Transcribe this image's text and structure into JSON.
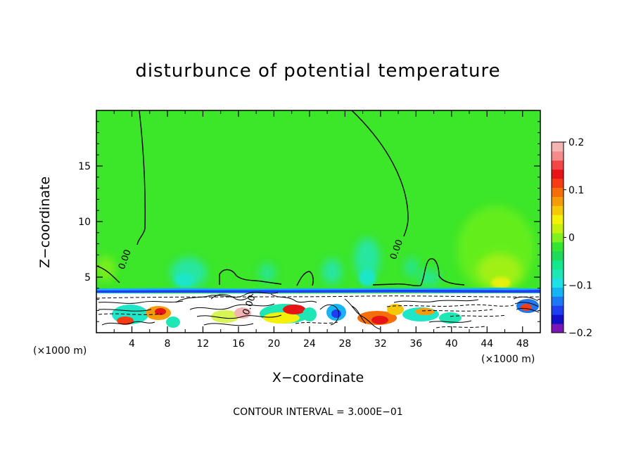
{
  "chart_data": {
    "type": "heatmap",
    "title": "disturbunce of potential temperature",
    "xlabel": "X−coordinate",
    "ylabel": "Z−coordinate",
    "x_unit_left": "(×1000 m)",
    "x_unit_right": "(×1000 m)",
    "xlim": [
      0,
      50
    ],
    "ylim": [
      0,
      20
    ],
    "x_ticks": [
      4,
      8,
      12,
      16,
      20,
      24,
      28,
      32,
      36,
      40,
      44,
      48
    ],
    "x_tick_labels": [
      "4",
      "8",
      "12",
      "16",
      "20",
      "24",
      "28",
      "32",
      "36",
      "40",
      "44",
      "48"
    ],
    "y_ticks": [
      5,
      10,
      15
    ],
    "y_tick_labels": [
      "5",
      "10",
      "15"
    ],
    "contour_labels": [
      {
        "text": "0.00",
        "x": 3.5,
        "y": 6.5
      },
      {
        "text": "0.00",
        "x": 34.1,
        "y": 7.4
      },
      {
        "text": "0.00",
        "x": 17.5,
        "y": 2.4
      }
    ],
    "colorbar": {
      "min": -0.2,
      "max": 0.2,
      "tick_values": [
        0.2,
        0.1,
        0,
        -0.1,
        -0.2
      ],
      "tick_labels": [
        "0.2",
        "0.1",
        "0",
        "−0.1",
        "−0.2"
      ],
      "colors": [
        "#7a16b8",
        "#1010c8",
        "#1e3ef0",
        "#1e78f5",
        "#14b4f5",
        "#1ee0e6",
        "#1ee6b4",
        "#14e88c",
        "#1edc5a",
        "#32e632",
        "#82f01e",
        "#c8f00f",
        "#f5f00a",
        "#f5c80a",
        "#f59b0a",
        "#f56e0a",
        "#f53c14",
        "#e61414",
        "#f54646",
        "#f58c8c",
        "#f5b4b4"
      ]
    },
    "contour_interval": "CONTOUR INTERVAL = 3.000E−01"
  }
}
